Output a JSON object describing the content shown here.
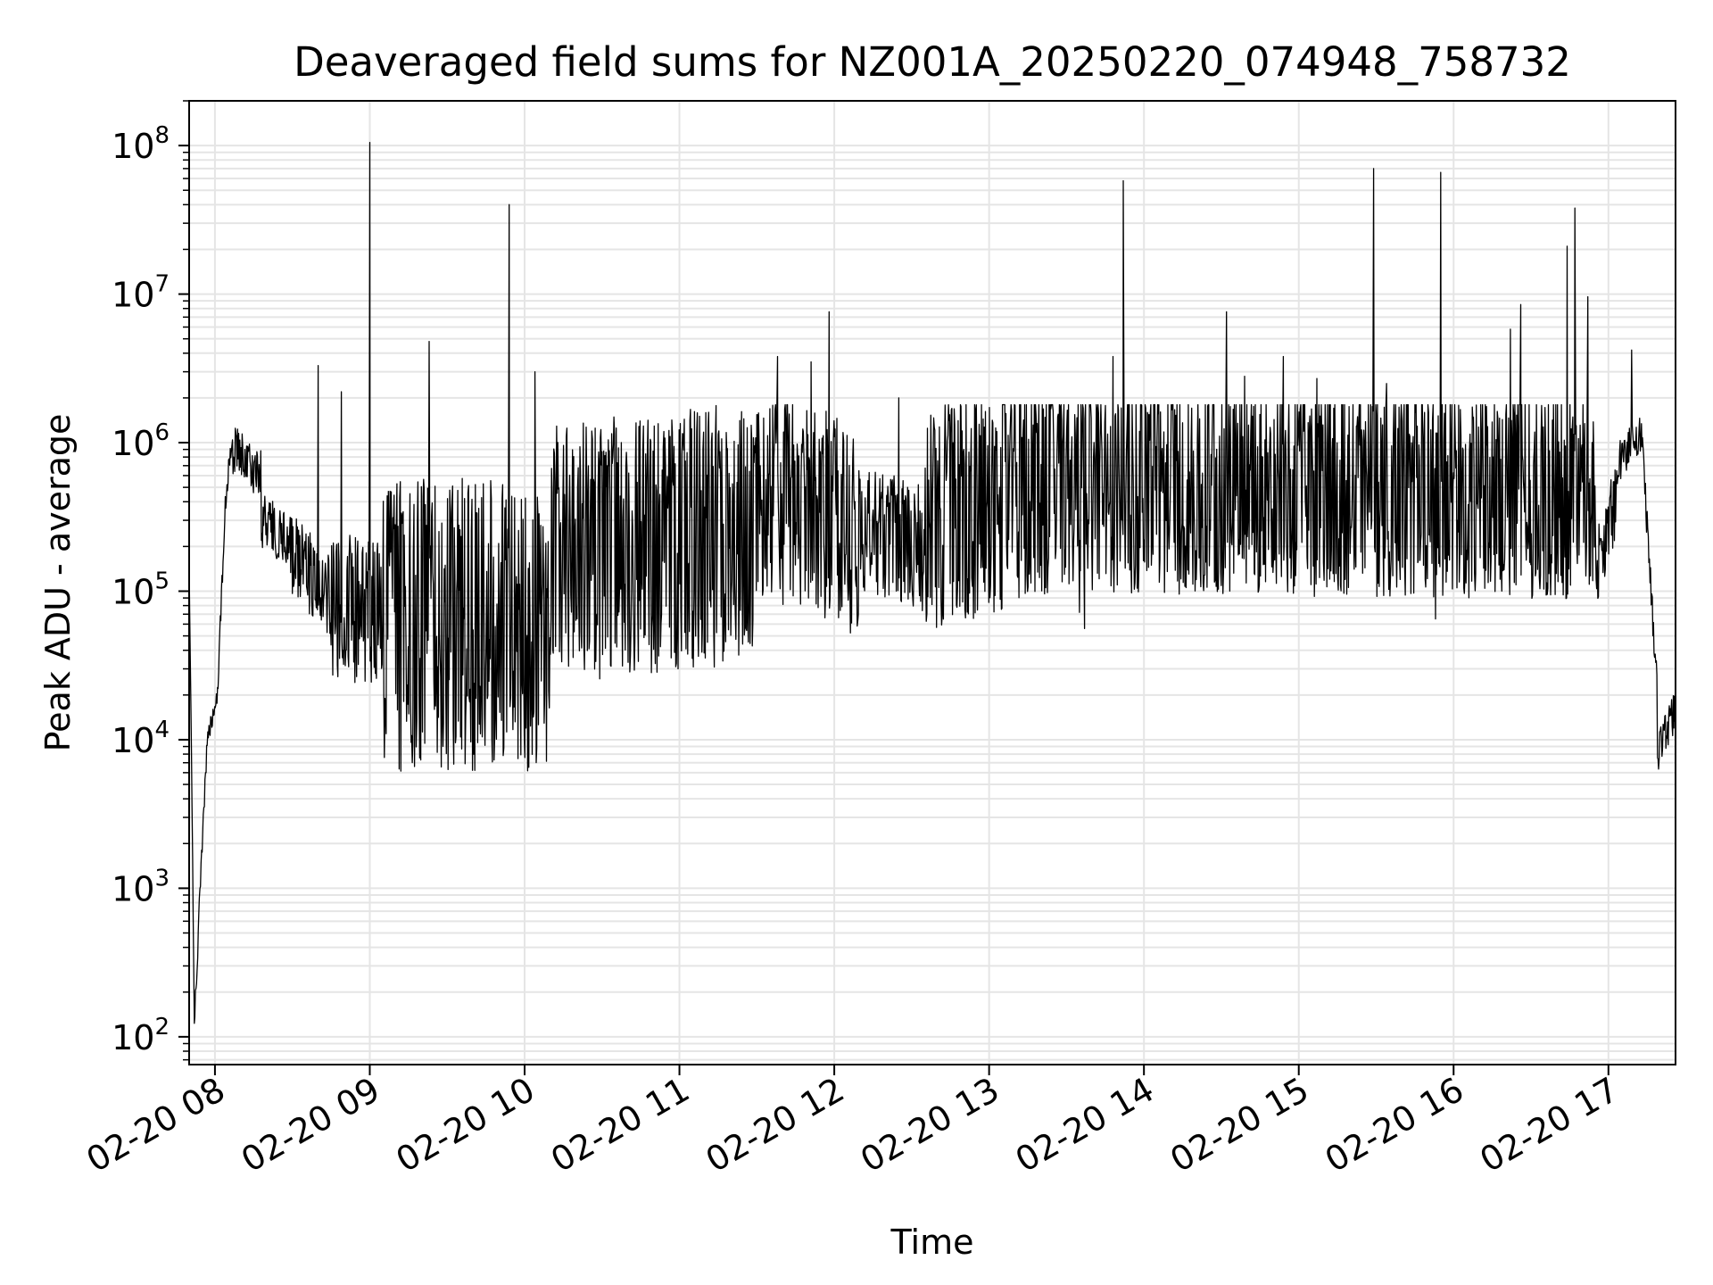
{
  "chart_data": {
    "type": "line",
    "title": "Deaveraged field sums for NZ001A_20250220_074948_758732",
    "xlabel": "Time",
    "ylabel": "Peak ADU - average",
    "yscale": "log",
    "ylim": [
      65,
      200000000
    ],
    "xlim": [
      "2025-02-20 07:50",
      "2025-02-20 17:26"
    ],
    "grid": true,
    "line_color": "#000000",
    "grid_color": "#e5e5e5",
    "x_ticks": [
      {
        "time": "2025-02-20 08:00",
        "label": "02-20 08"
      },
      {
        "time": "2025-02-20 09:00",
        "label": "02-20 09"
      },
      {
        "time": "2025-02-20 10:00",
        "label": "02-20 10"
      },
      {
        "time": "2025-02-20 11:00",
        "label": "02-20 11"
      },
      {
        "time": "2025-02-20 12:00",
        "label": "02-20 12"
      },
      {
        "time": "2025-02-20 13:00",
        "label": "02-20 13"
      },
      {
        "time": "2025-02-20 14:00",
        "label": "02-20 14"
      },
      {
        "time": "2025-02-20 15:00",
        "label": "02-20 15"
      },
      {
        "time": "2025-02-20 16:00",
        "label": "02-20 16"
      },
      {
        "time": "2025-02-20 17:00",
        "label": "02-20 17"
      }
    ],
    "y_ticks": [
      {
        "value": 100,
        "base": "10",
        "exp": "2"
      },
      {
        "value": 1000,
        "base": "10",
        "exp": "3"
      },
      {
        "value": 10000,
        "base": "10",
        "exp": "4"
      },
      {
        "value": 100000,
        "base": "10",
        "exp": "5"
      },
      {
        "value": 1000000,
        "base": "10",
        "exp": "6"
      },
      {
        "value": 10000000,
        "base": "10",
        "exp": "7"
      },
      {
        "value": 100000000,
        "base": "10",
        "exp": "8"
      }
    ],
    "segments": [
      {
        "t0": "2025-02-20 07:50",
        "t1": "2025-02-20 07:52",
        "v0": 180000,
        "v1": 130,
        "noise": 0.1
      },
      {
        "t0": "2025-02-20 07:52",
        "t1": "2025-02-20 07:57",
        "v0": 130,
        "v1": 10000,
        "noise": 0.15
      },
      {
        "t0": "2025-02-20 07:57",
        "t1": "2025-02-20 08:01",
        "v0": 10000,
        "v1": 20000,
        "noise": 0.12
      },
      {
        "t0": "2025-02-20 08:01",
        "t1": "2025-02-20 08:04",
        "v0": 20000,
        "v1": 400000,
        "noise": 0.15
      },
      {
        "t0": "2025-02-20 08:04",
        "t1": "2025-02-20 08:07",
        "v0": 400000,
        "v1": 1200000,
        "noise": 0.15
      },
      {
        "t0": "2025-02-20 08:07",
        "t1": "2025-02-20 08:18",
        "v0": 900000,
        "v1": 600000,
        "noise": 0.3
      },
      {
        "t0": "2025-02-20 08:18",
        "t1": "2025-02-20 08:30",
        "v0": 300000,
        "v1": 200000,
        "noise": 0.35
      },
      {
        "t0": "2025-02-20 08:30",
        "t1": "2025-02-20 08:45",
        "v0": 180000,
        "v1": 90000,
        "noise": 0.5
      },
      {
        "t0": "2025-02-20 08:45",
        "t1": "2025-02-20 09:05",
        "v0": 80000,
        "v1": 70000,
        "noise": 0.9
      },
      {
        "t0": "2025-02-20 09:05",
        "t1": "2025-02-20 10:10",
        "v0": 60000,
        "v1": 60000,
        "noise": 1.8
      },
      {
        "t0": "2025-02-20 10:10",
        "t1": "2025-02-20 11:30",
        "v0": 180000,
        "v1": 250000,
        "noise": 1.6
      },
      {
        "t0": "2025-02-20 11:30",
        "t1": "2025-02-20 12:10",
        "v0": 500000,
        "v1": 250000,
        "noise": 1.3
      },
      {
        "t0": "2025-02-20 12:10",
        "t1": "2025-02-20 12:35",
        "v0": 250000,
        "v1": 200000,
        "noise": 0.8
      },
      {
        "t0": "2025-02-20 12:35",
        "t1": "2025-02-20 13:40",
        "v0": 300000,
        "v1": 700000,
        "noise": 1.4
      },
      {
        "t0": "2025-02-20 13:40",
        "t1": "2025-02-20 16:55",
        "v0": 500000,
        "v1": 450000,
        "noise": 1.3
      },
      {
        "t0": "2025-02-20 16:55",
        "t1": "2025-02-20 17:03",
        "v0": 150000,
        "v1": 400000,
        "noise": 0.5
      },
      {
        "t0": "2025-02-20 17:03",
        "t1": "2025-02-20 17:13",
        "v0": 700000,
        "v1": 1200000,
        "noise": 0.25
      },
      {
        "t0": "2025-02-20 17:13",
        "t1": "2025-02-20 17:19",
        "v0": 1000000,
        "v1": 20000,
        "noise": 0.2
      },
      {
        "t0": "2025-02-20 17:19",
        "t1": "2025-02-20 17:26",
        "v0": 8000,
        "v1": 16000,
        "noise": 0.25
      }
    ],
    "spikes": [
      {
        "time": "2025-02-20 09:00",
        "value": 105000000
      },
      {
        "time": "2025-02-20 09:23",
        "value": 4800000
      },
      {
        "time": "2025-02-20 09:54",
        "value": 40000000
      },
      {
        "time": "2025-02-20 10:04",
        "value": 3000000
      },
      {
        "time": "2025-02-20 08:40",
        "value": 3300000
      },
      {
        "time": "2025-02-20 08:49",
        "value": 2200000
      },
      {
        "time": "2025-02-20 11:38",
        "value": 3800000
      },
      {
        "time": "2025-02-20 11:51",
        "value": 3500000
      },
      {
        "time": "2025-02-20 11:58",
        "value": 7600000
      },
      {
        "time": "2025-02-20 12:25",
        "value": 2000000
      },
      {
        "time": "2025-02-20 13:48",
        "value": 3800000
      },
      {
        "time": "2025-02-20 13:52",
        "value": 58000000
      },
      {
        "time": "2025-02-20 14:32",
        "value": 7600000
      },
      {
        "time": "2025-02-20 14:39",
        "value": 2800000
      },
      {
        "time": "2025-02-20 14:54",
        "value": 3800000
      },
      {
        "time": "2025-02-20 15:07",
        "value": 2700000
      },
      {
        "time": "2025-02-20 15:29",
        "value": 70000000
      },
      {
        "time": "2025-02-20 15:34",
        "value": 2500000
      },
      {
        "time": "2025-02-20 15:55",
        "value": 66000000
      },
      {
        "time": "2025-02-20 16:22",
        "value": 5800000
      },
      {
        "time": "2025-02-20 16:26",
        "value": 8500000
      },
      {
        "time": "2025-02-20 16:44",
        "value": 21000000
      },
      {
        "time": "2025-02-20 16:47",
        "value": 38000000
      },
      {
        "time": "2025-02-20 16:52",
        "value": 9600000
      },
      {
        "time": "2025-02-20 17:09",
        "value": 4200000
      }
    ],
    "dips": [
      {
        "time": "2025-02-20 11:53",
        "value": 82000
      },
      {
        "time": "2025-02-20 12:26",
        "value": 85000
      },
      {
        "time": "2025-02-20 13:35",
        "value": 72000
      },
      {
        "time": "2025-02-20 13:37",
        "value": 56000
      },
      {
        "time": "2025-02-20 15:53",
        "value": 65000
      },
      {
        "time": "2025-02-20 09:45",
        "value": 37000
      }
    ]
  }
}
